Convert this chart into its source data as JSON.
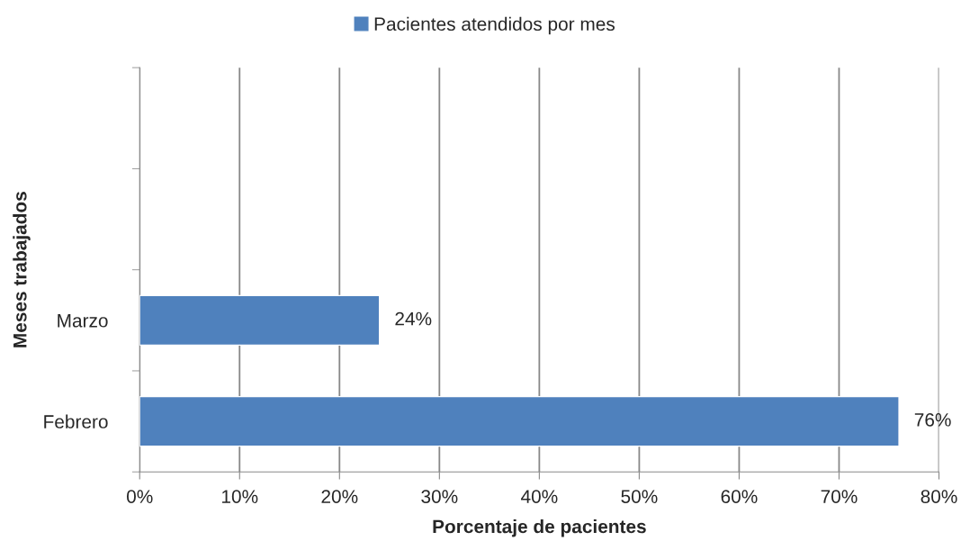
{
  "chart_data": {
    "type": "bar",
    "orientation": "horizontal",
    "categories": [
      null,
      null,
      "Marzo",
      "Febrero"
    ],
    "series": [
      {
        "name": "Pacientes atendidos por mes",
        "color": "#4f81bd",
        "values": [
          null,
          null,
          24,
          76
        ],
        "value_labels": [
          null,
          null,
          "24%",
          "76%"
        ]
      }
    ],
    "xlabel": "Porcentaje de pacientes",
    "ylabel": "Meses trabajados",
    "xlim": [
      0,
      80
    ],
    "xticks": [
      {
        "value": 0,
        "label": "0%"
      },
      {
        "value": 10,
        "label": "10%"
      },
      {
        "value": 20,
        "label": "20%"
      },
      {
        "value": 30,
        "label": "30%"
      },
      {
        "value": 40,
        "label": "40%"
      },
      {
        "value": 50,
        "label": "50%"
      },
      {
        "value": 60,
        "label": "60%"
      },
      {
        "value": 70,
        "label": "70%"
      },
      {
        "value": 80,
        "label": "80%"
      }
    ],
    "grid": "x",
    "legend": "top"
  }
}
